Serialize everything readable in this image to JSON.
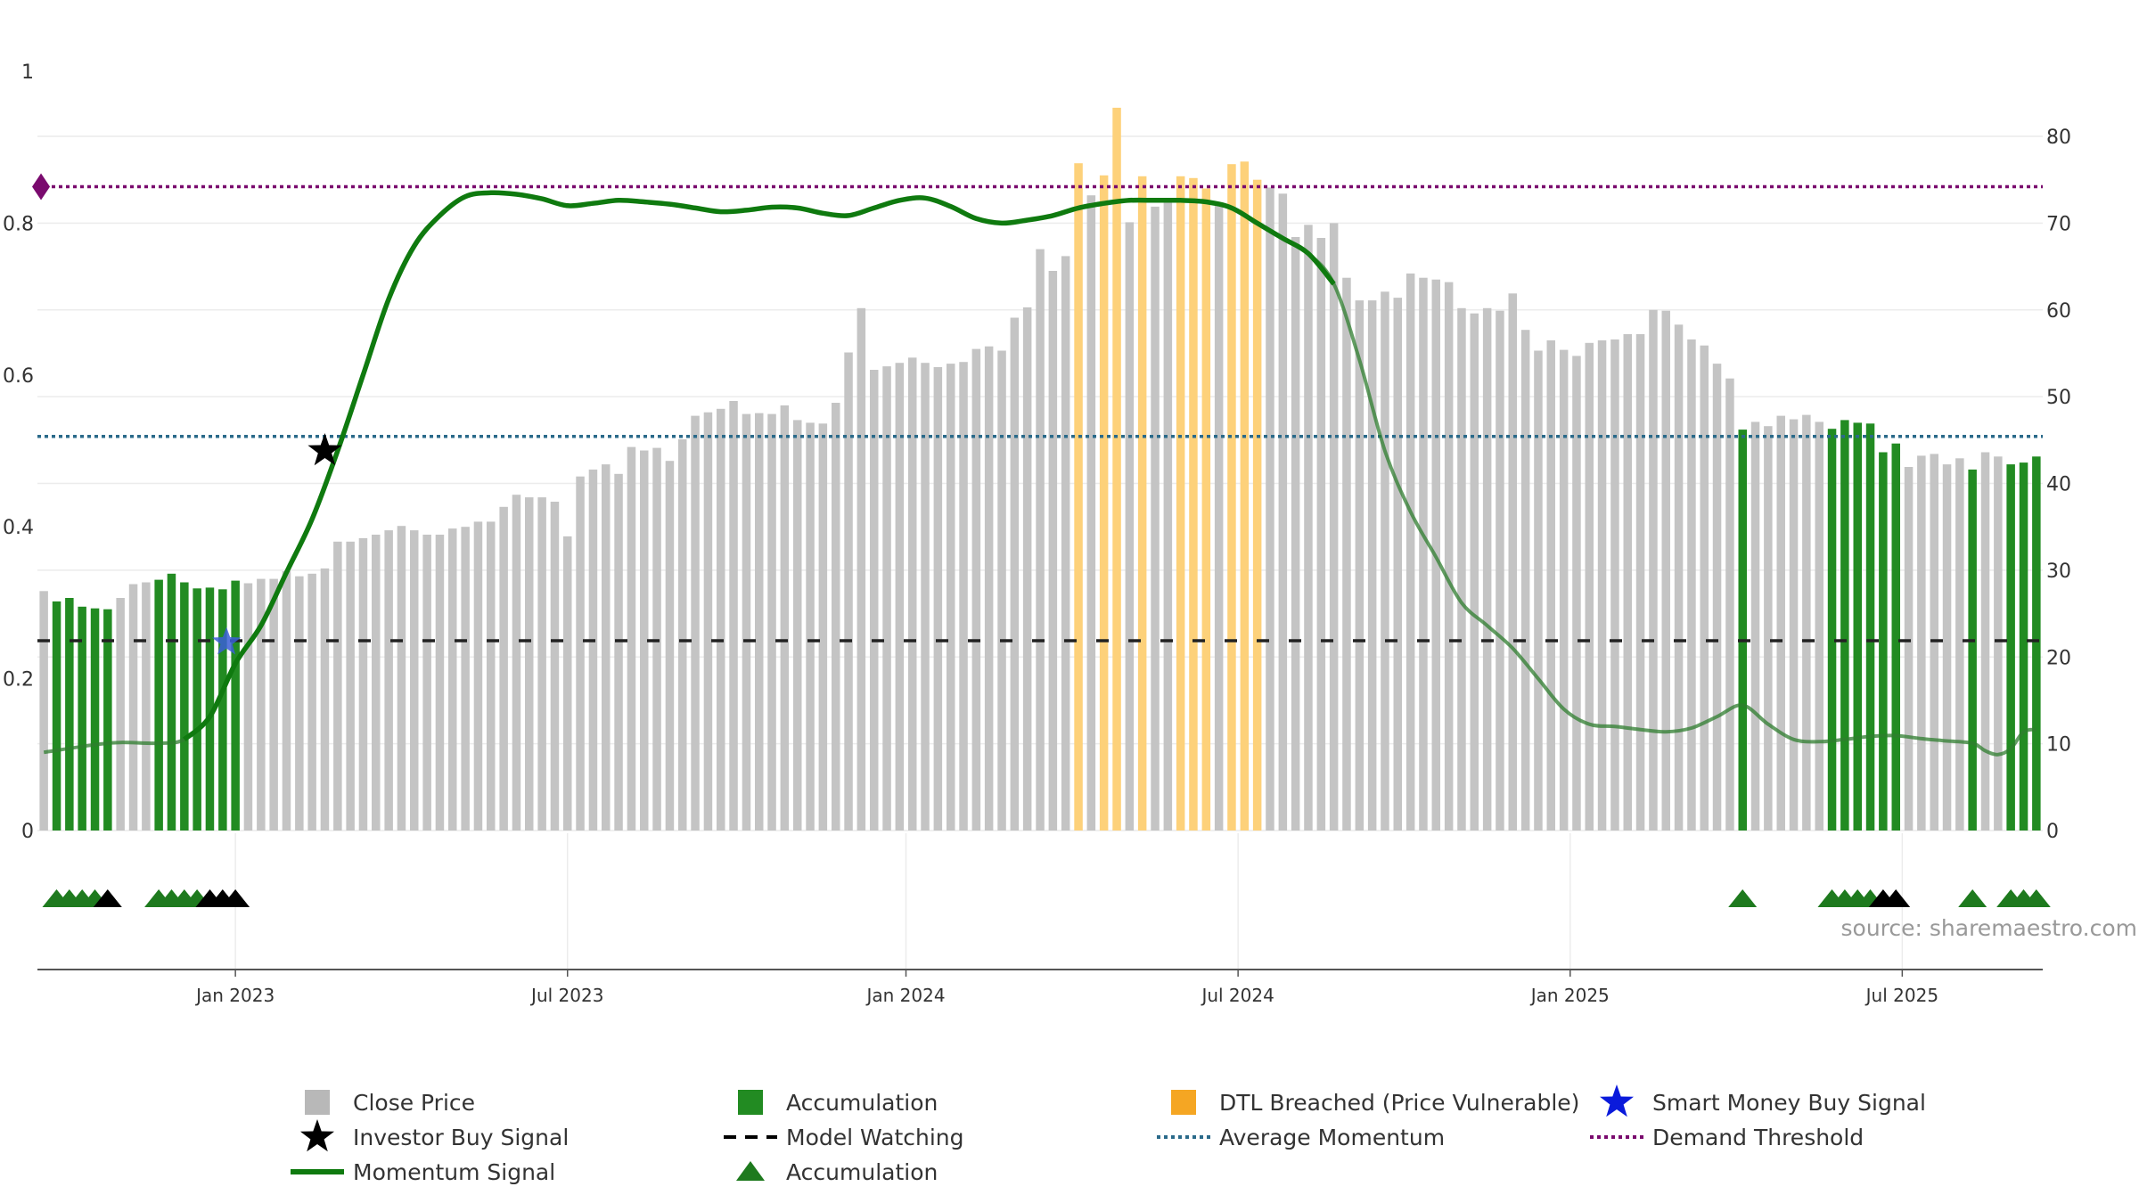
{
  "chart_data": {
    "type": "bar",
    "source": "source: sharemaestro.com",
    "left_axis": {
      "range": [
        0,
        1
      ],
      "ticks": [
        "0",
        "0.2",
        "0.4",
        "0.6",
        "0.8",
        "1"
      ],
      "tick_values": [
        0,
        0.2,
        0.4,
        0.6,
        0.8,
        1
      ]
    },
    "right_axis": {
      "range": [
        0,
        87.5
      ],
      "ticks": [
        "0",
        "10",
        "20",
        "30",
        "40",
        "50",
        "60",
        "70",
        "80"
      ],
      "tick_values": [
        0,
        10,
        20,
        30,
        40,
        50,
        60,
        70,
        80
      ]
    },
    "x_axis": {
      "start": "2022-10-10",
      "weeks": 157,
      "ticks": [
        {
          "label": "Jan 2023",
          "week": 15
        },
        {
          "label": "Jul 2023",
          "week": 41
        },
        {
          "label": "Jan 2024",
          "week": 67.5
        },
        {
          "label": "Jul 2024",
          "week": 93.5
        },
        {
          "label": "Jan 2025",
          "week": 119.5
        },
        {
          "label": "Jul 2025",
          "week": 145.5
        }
      ]
    },
    "bar_status_codes": {
      "g": "Close Price",
      "a": "Accumulation",
      "o": "DTL Breached (Price Vulnerable)"
    },
    "close_price": [
      {
        "w": 0,
        "v": 27.6,
        "s": "g"
      },
      {
        "w": 1,
        "v": 26.4,
        "s": "a"
      },
      {
        "w": 2,
        "v": 26.8,
        "s": "a"
      },
      {
        "w": 3,
        "v": 25.8,
        "s": "a"
      },
      {
        "w": 4,
        "v": 25.6,
        "s": "a"
      },
      {
        "w": 5,
        "v": 25.5,
        "s": "a"
      },
      {
        "w": 6,
        "v": 26.8,
        "s": "g"
      },
      {
        "w": 7,
        "v": 28.4,
        "s": "g"
      },
      {
        "w": 8,
        "v": 28.6,
        "s": "g"
      },
      {
        "w": 9,
        "v": 28.9,
        "s": "a"
      },
      {
        "w": 10,
        "v": 29.6,
        "s": "a"
      },
      {
        "w": 11,
        "v": 28.6,
        "s": "a"
      },
      {
        "w": 12,
        "v": 27.9,
        "s": "a"
      },
      {
        "w": 13,
        "v": 28.0,
        "s": "a"
      },
      {
        "w": 14,
        "v": 27.8,
        "s": "a"
      },
      {
        "w": 15,
        "v": 28.8,
        "s": "a"
      },
      {
        "w": 16,
        "v": 28.5,
        "s": "g"
      },
      {
        "w": 17,
        "v": 29.0,
        "s": "g"
      },
      {
        "w": 18,
        "v": 29.0,
        "s": "g"
      },
      {
        "w": 19,
        "v": 29.9,
        "s": "g"
      },
      {
        "w": 20,
        "v": 29.3,
        "s": "g"
      },
      {
        "w": 21,
        "v": 29.6,
        "s": "g"
      },
      {
        "w": 22,
        "v": 30.2,
        "s": "g"
      },
      {
        "w": 23,
        "v": 33.3,
        "s": "g"
      },
      {
        "w": 24,
        "v": 33.3,
        "s": "g"
      },
      {
        "w": 25,
        "v": 33.7,
        "s": "g"
      },
      {
        "w": 26,
        "v": 34.1,
        "s": "g"
      },
      {
        "w": 27,
        "v": 34.6,
        "s": "g"
      },
      {
        "w": 28,
        "v": 35.1,
        "s": "g"
      },
      {
        "w": 29,
        "v": 34.6,
        "s": "g"
      },
      {
        "w": 30,
        "v": 34.1,
        "s": "g"
      },
      {
        "w": 31,
        "v": 34.1,
        "s": "g"
      },
      {
        "w": 32,
        "v": 34.8,
        "s": "g"
      },
      {
        "w": 33,
        "v": 35.0,
        "s": "g"
      },
      {
        "w": 34,
        "v": 35.6,
        "s": "g"
      },
      {
        "w": 35,
        "v": 35.6,
        "s": "g"
      },
      {
        "w": 36,
        "v": 37.3,
        "s": "g"
      },
      {
        "w": 37,
        "v": 38.7,
        "s": "g"
      },
      {
        "w": 38,
        "v": 38.4,
        "s": "g"
      },
      {
        "w": 39,
        "v": 38.4,
        "s": "g"
      },
      {
        "w": 40,
        "v": 37.9,
        "s": "g"
      },
      {
        "w": 41,
        "v": 33.9,
        "s": "g"
      },
      {
        "w": 42,
        "v": 40.8,
        "s": "g"
      },
      {
        "w": 43,
        "v": 41.6,
        "s": "g"
      },
      {
        "w": 44,
        "v": 42.2,
        "s": "g"
      },
      {
        "w": 45,
        "v": 41.1,
        "s": "g"
      },
      {
        "w": 46,
        "v": 44.2,
        "s": "g"
      },
      {
        "w": 47,
        "v": 43.8,
        "s": "g"
      },
      {
        "w": 48,
        "v": 44.1,
        "s": "g"
      },
      {
        "w": 49,
        "v": 42.6,
        "s": "g"
      },
      {
        "w": 50,
        "v": 45.1,
        "s": "g"
      },
      {
        "w": 51,
        "v": 47.8,
        "s": "g"
      },
      {
        "w": 52,
        "v": 48.2,
        "s": "g"
      },
      {
        "w": 53,
        "v": 48.6,
        "s": "g"
      },
      {
        "w": 54,
        "v": 49.5,
        "s": "g"
      },
      {
        "w": 55,
        "v": 48.0,
        "s": "g"
      },
      {
        "w": 56,
        "v": 48.1,
        "s": "g"
      },
      {
        "w": 57,
        "v": 48.0,
        "s": "g"
      },
      {
        "w": 58,
        "v": 49.0,
        "s": "g"
      },
      {
        "w": 59,
        "v": 47.3,
        "s": "g"
      },
      {
        "w": 60,
        "v": 47.0,
        "s": "g"
      },
      {
        "w": 61,
        "v": 46.9,
        "s": "g"
      },
      {
        "w": 62,
        "v": 49.3,
        "s": "g"
      },
      {
        "w": 63,
        "v": 55.1,
        "s": "g"
      },
      {
        "w": 64,
        "v": 60.2,
        "s": "g"
      },
      {
        "w": 65,
        "v": 53.1,
        "s": "g"
      },
      {
        "w": 66,
        "v": 53.5,
        "s": "g"
      },
      {
        "w": 67,
        "v": 53.9,
        "s": "g"
      },
      {
        "w": 68,
        "v": 54.5,
        "s": "g"
      },
      {
        "w": 69,
        "v": 53.9,
        "s": "g"
      },
      {
        "w": 70,
        "v": 53.4,
        "s": "g"
      },
      {
        "w": 71,
        "v": 53.8,
        "s": "g"
      },
      {
        "w": 72,
        "v": 54.0,
        "s": "g"
      },
      {
        "w": 73,
        "v": 55.5,
        "s": "g"
      },
      {
        "w": 74,
        "v": 55.8,
        "s": "g"
      },
      {
        "w": 75,
        "v": 55.3,
        "s": "g"
      },
      {
        "w": 76,
        "v": 59.1,
        "s": "g"
      },
      {
        "w": 77,
        "v": 60.3,
        "s": "g"
      },
      {
        "w": 78,
        "v": 67.0,
        "s": "g"
      },
      {
        "w": 79,
        "v": 64.5,
        "s": "g"
      },
      {
        "w": 80,
        "v": 66.2,
        "s": "g"
      },
      {
        "w": 81,
        "v": 76.9,
        "s": "o"
      },
      {
        "w": 82,
        "v": 73.2,
        "s": "g"
      },
      {
        "w": 83,
        "v": 75.5,
        "s": "o"
      },
      {
        "w": 84,
        "v": 83.3,
        "s": "o"
      },
      {
        "w": 85,
        "v": 70.1,
        "s": "g"
      },
      {
        "w": 86,
        "v": 75.4,
        "s": "o"
      },
      {
        "w": 87,
        "v": 71.9,
        "s": "g"
      },
      {
        "w": 88,
        "v": 72.9,
        "s": "g"
      },
      {
        "w": 89,
        "v": 75.4,
        "s": "o"
      },
      {
        "w": 90,
        "v": 75.2,
        "s": "o"
      },
      {
        "w": 91,
        "v": 74.0,
        "s": "o"
      },
      {
        "w": 92,
        "v": 72.2,
        "s": "g"
      },
      {
        "w": 93,
        "v": 76.8,
        "s": "o"
      },
      {
        "w": 94,
        "v": 77.1,
        "s": "o"
      },
      {
        "w": 95,
        "v": 75.0,
        "s": "o"
      },
      {
        "w": 96,
        "v": 74.1,
        "s": "g"
      },
      {
        "w": 97,
        "v": 73.4,
        "s": "g"
      },
      {
        "w": 98,
        "v": 68.4,
        "s": "g"
      },
      {
        "w": 99,
        "v": 69.8,
        "s": "g"
      },
      {
        "w": 100,
        "v": 68.3,
        "s": "g"
      },
      {
        "w": 101,
        "v": 70.0,
        "s": "g"
      },
      {
        "w": 102,
        "v": 63.7,
        "s": "g"
      },
      {
        "w": 103,
        "v": 61.1,
        "s": "g"
      },
      {
        "w": 104,
        "v": 61.1,
        "s": "g"
      },
      {
        "w": 105,
        "v": 62.1,
        "s": "g"
      },
      {
        "w": 106,
        "v": 61.4,
        "s": "g"
      },
      {
        "w": 107,
        "v": 64.2,
        "s": "g"
      },
      {
        "w": 108,
        "v": 63.7,
        "s": "g"
      },
      {
        "w": 109,
        "v": 63.5,
        "s": "g"
      },
      {
        "w": 110,
        "v": 63.2,
        "s": "g"
      },
      {
        "w": 111,
        "v": 60.2,
        "s": "g"
      },
      {
        "w": 112,
        "v": 59.6,
        "s": "g"
      },
      {
        "w": 113,
        "v": 60.2,
        "s": "g"
      },
      {
        "w": 114,
        "v": 59.9,
        "s": "g"
      },
      {
        "w": 115,
        "v": 61.9,
        "s": "g"
      },
      {
        "w": 116,
        "v": 57.7,
        "s": "g"
      },
      {
        "w": 117,
        "v": 55.3,
        "s": "g"
      },
      {
        "w": 118,
        "v": 56.5,
        "s": "g"
      },
      {
        "w": 119,
        "v": 55.4,
        "s": "g"
      },
      {
        "w": 120,
        "v": 54.7,
        "s": "g"
      },
      {
        "w": 121,
        "v": 56.2,
        "s": "g"
      },
      {
        "w": 122,
        "v": 56.5,
        "s": "g"
      },
      {
        "w": 123,
        "v": 56.6,
        "s": "g"
      },
      {
        "w": 124,
        "v": 57.2,
        "s": "g"
      },
      {
        "w": 125,
        "v": 57.2,
        "s": "g"
      },
      {
        "w": 126,
        "v": 60.0,
        "s": "g"
      },
      {
        "w": 127,
        "v": 59.9,
        "s": "g"
      },
      {
        "w": 128,
        "v": 58.3,
        "s": "g"
      },
      {
        "w": 129,
        "v": 56.6,
        "s": "g"
      },
      {
        "w": 130,
        "v": 55.9,
        "s": "g"
      },
      {
        "w": 131,
        "v": 53.8,
        "s": "g"
      },
      {
        "w": 132,
        "v": 52.1,
        "s": "g"
      },
      {
        "w": 133,
        "v": 46.2,
        "s": "a"
      },
      {
        "w": 134,
        "v": 47.1,
        "s": "g"
      },
      {
        "w": 135,
        "v": 46.6,
        "s": "g"
      },
      {
        "w": 136,
        "v": 47.8,
        "s": "g"
      },
      {
        "w": 137,
        "v": 47.4,
        "s": "g"
      },
      {
        "w": 138,
        "v": 47.9,
        "s": "g"
      },
      {
        "w": 139,
        "v": 47.1,
        "s": "g"
      },
      {
        "w": 140,
        "v": 46.3,
        "s": "a"
      },
      {
        "w": 141,
        "v": 47.3,
        "s": "a"
      },
      {
        "w": 142,
        "v": 47.0,
        "s": "a"
      },
      {
        "w": 143,
        "v": 46.9,
        "s": "a"
      },
      {
        "w": 144,
        "v": 43.6,
        "s": "a"
      },
      {
        "w": 145,
        "v": 44.6,
        "s": "a"
      },
      {
        "w": 146,
        "v": 41.9,
        "s": "g"
      },
      {
        "w": 147,
        "v": 43.2,
        "s": "g"
      },
      {
        "w": 148,
        "v": 43.4,
        "s": "g"
      },
      {
        "w": 149,
        "v": 42.2,
        "s": "g"
      },
      {
        "w": 150,
        "v": 42.9,
        "s": "g"
      },
      {
        "w": 151,
        "v": 41.6,
        "s": "a"
      },
      {
        "w": 152,
        "v": 43.6,
        "s": "g"
      },
      {
        "w": 153,
        "v": 43.1,
        "s": "g"
      },
      {
        "w": 154,
        "v": 42.2,
        "s": "a"
      },
      {
        "w": 155,
        "v": 42.4,
        "s": "a"
      },
      {
        "w": 156,
        "v": 43.1,
        "s": "a"
      }
    ],
    "momentum_signal": [
      [
        0,
        0.103
      ],
      [
        4,
        0.113
      ],
      [
        6,
        0.116
      ],
      [
        9,
        0.115
      ],
      [
        11,
        0.12
      ],
      [
        13,
        0.15
      ],
      [
        15,
        0.22
      ],
      [
        17,
        0.27
      ],
      [
        19,
        0.34
      ],
      [
        21,
        0.41
      ],
      [
        23,
        0.5
      ],
      [
        25,
        0.6
      ],
      [
        27,
        0.7
      ],
      [
        29,
        0.77
      ],
      [
        31,
        0.81
      ],
      [
        33,
        0.835
      ],
      [
        35,
        0.84
      ],
      [
        37,
        0.838
      ],
      [
        39,
        0.832
      ],
      [
        41,
        0.823
      ],
      [
        43,
        0.826
      ],
      [
        45,
        0.83
      ],
      [
        47,
        0.828
      ],
      [
        49,
        0.825
      ],
      [
        51,
        0.82
      ],
      [
        53,
        0.815
      ],
      [
        55,
        0.817
      ],
      [
        57,
        0.821
      ],
      [
        59,
        0.82
      ],
      [
        61,
        0.813
      ],
      [
        63,
        0.81
      ],
      [
        65,
        0.82
      ],
      [
        67,
        0.83
      ],
      [
        69,
        0.833
      ],
      [
        71,
        0.822
      ],
      [
        73,
        0.806
      ],
      [
        75,
        0.8
      ],
      [
        77,
        0.804
      ],
      [
        79,
        0.81
      ],
      [
        81,
        0.82
      ],
      [
        83,
        0.826
      ],
      [
        85,
        0.83
      ],
      [
        87,
        0.83
      ],
      [
        89,
        0.83
      ],
      [
        91,
        0.828
      ],
      [
        93,
        0.82
      ],
      [
        95,
        0.8
      ],
      [
        97,
        0.78
      ],
      [
        99,
        0.76
      ],
      [
        101,
        0.72
      ],
      [
        103,
        0.62
      ],
      [
        105,
        0.5
      ],
      [
        107,
        0.42
      ],
      [
        109,
        0.36
      ],
      [
        111,
        0.3
      ],
      [
        113,
        0.27
      ],
      [
        115,
        0.24
      ],
      [
        117,
        0.2
      ],
      [
        119,
        0.16
      ],
      [
        121,
        0.14
      ],
      [
        123,
        0.137
      ],
      [
        125,
        0.133
      ],
      [
        127,
        0.13
      ],
      [
        129,
        0.135
      ],
      [
        131,
        0.15
      ],
      [
        133,
        0.165
      ],
      [
        135,
        0.14
      ],
      [
        137,
        0.12
      ],
      [
        139,
        0.117
      ],
      [
        141,
        0.12
      ],
      [
        143,
        0.124
      ],
      [
        145,
        0.125
      ],
      [
        147,
        0.121
      ],
      [
        149,
        0.118
      ],
      [
        151,
        0.115
      ],
      [
        152,
        0.105
      ],
      [
        153,
        0.1
      ],
      [
        154,
        0.108
      ],
      [
        155,
        0.13
      ],
      [
        156,
        0.133
      ]
    ],
    "momentum_emphasized_range": [
      10,
      101
    ],
    "reference_lines": [
      {
        "name": "Demand Threshold",
        "axis": "left",
        "value": 0.848,
        "color": "#7a0a6e"
      },
      {
        "name": "Average Momentum",
        "axis": "left",
        "value": 0.519,
        "color": "#2a6a8a"
      },
      {
        "name": "Model Watching",
        "axis": "left",
        "value": 0.25,
        "color": "#222222"
      }
    ],
    "investor_buy_signal": {
      "week": 22,
      "value": 0.5
    },
    "smart_money_buy_signal": {
      "week": 14.3,
      "value": 0.248
    },
    "demand_threshold_marker": {
      "week": 0.2,
      "value": 0.848
    },
    "event_markers": [
      {
        "w": 1,
        "t": "acc"
      },
      {
        "w": 2,
        "t": "acc"
      },
      {
        "w": 3,
        "t": "acc"
      },
      {
        "w": 4,
        "t": "acc"
      },
      {
        "w": 5,
        "t": "inv"
      },
      {
        "w": 9,
        "t": "acc"
      },
      {
        "w": 10,
        "t": "acc"
      },
      {
        "w": 11,
        "t": "acc"
      },
      {
        "w": 12,
        "t": "acc"
      },
      {
        "w": 13,
        "t": "inv"
      },
      {
        "w": 14,
        "t": "inv"
      },
      {
        "w": 15,
        "t": "inv"
      },
      {
        "w": 133,
        "t": "acc"
      },
      {
        "w": 140,
        "t": "acc"
      },
      {
        "w": 141,
        "t": "acc"
      },
      {
        "w": 142,
        "t": "acc"
      },
      {
        "w": 143,
        "t": "acc"
      },
      {
        "w": 144,
        "t": "inv"
      },
      {
        "w": 145,
        "t": "inv"
      },
      {
        "w": 151,
        "t": "acc"
      },
      {
        "w": 154,
        "t": "acc"
      },
      {
        "w": 155,
        "t": "acc"
      },
      {
        "w": 156,
        "t": "acc"
      }
    ],
    "legend": [
      {
        "label": "Close Price",
        "symbol": "square",
        "color": "#b8b8b8"
      },
      {
        "label": "Accumulation",
        "symbol": "square",
        "color": "#228b22"
      },
      {
        "label": "DTL Breached (Price Vulnerable)",
        "symbol": "square",
        "color": "#f5a623"
      },
      {
        "label": "Smart Money Buy Signal",
        "symbol": "star",
        "color": "#0a1adb"
      },
      {
        "label": "Investor Buy Signal",
        "symbol": "star",
        "color": "#000000"
      },
      {
        "label": "Model Watching",
        "symbol": "dash",
        "color": "#000000"
      },
      {
        "label": "Average Momentum",
        "symbol": "dot",
        "color": "#2a6a8a"
      },
      {
        "label": "Demand Threshold",
        "symbol": "dot",
        "color": "#7a0a6e"
      },
      {
        "label": "Momentum Signal",
        "symbol": "line",
        "color": "#0f7a0f"
      },
      {
        "label": "Accumulation",
        "symbol": "triangle",
        "color": "#1e7a1e"
      }
    ]
  }
}
